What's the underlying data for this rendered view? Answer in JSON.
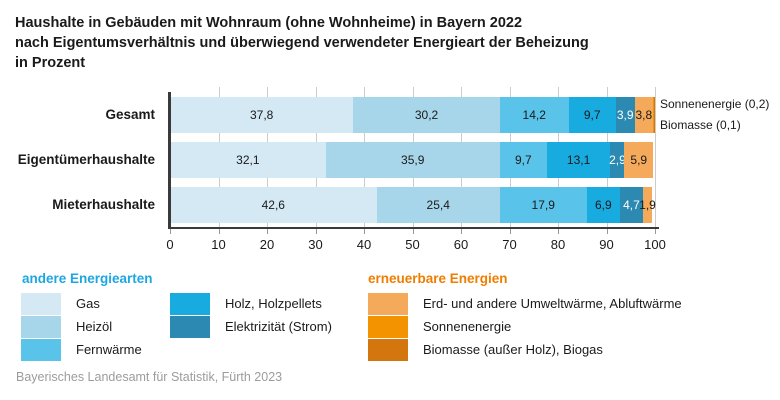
{
  "title": {
    "line1": "Haushalte in Gebäuden mit Wohnraum (ohne Wohnheime) in Bayern 2022",
    "line2": "nach Eigentumsverhältnis und überwiegend verwendeter Energieart der Beheizung",
    "line3": "in Prozent"
  },
  "footer": "Bayerisches Landesamt für Statistik, Fürth 2023",
  "colors": {
    "grid": "#cccccc",
    "axis": "#3a3a3a",
    "tick": "#999999",
    "text": "#1a1a1a",
    "footer_text": "#9c9c9c",
    "blue_heading": "#1da7e2",
    "orange_heading": "#ef7d00"
  },
  "chart_data": {
    "type": "bar",
    "orientation": "horizontal",
    "stacked": true,
    "unit": "Prozent",
    "xlim": [
      0,
      100
    ],
    "xticks": [
      0,
      10,
      20,
      30,
      40,
      50,
      60,
      70,
      80,
      90,
      100
    ],
    "grid": true,
    "categories": [
      "Gesamt",
      "Eigentümerhaushalte",
      "Mieterhaushalte"
    ],
    "series": [
      {
        "name": "Gas",
        "color": "#d4e9f4",
        "label_color": "#1a1a1a",
        "values": [
          37.8,
          32.1,
          42.6
        ],
        "labels": [
          "37,8",
          "32,1",
          "42,6"
        ]
      },
      {
        "name": "Heizöl",
        "color": "#a7d6ea",
        "label_color": "#1a1a1a",
        "values": [
          30.2,
          35.9,
          25.4
        ],
        "labels": [
          "30,2",
          "35,9",
          "25,4"
        ]
      },
      {
        "name": "Fernwärme",
        "color": "#5ac3ea",
        "label_color": "#1a1a1a",
        "values": [
          14.2,
          9.7,
          17.9
        ],
        "labels": [
          "14,2",
          "9,7",
          "17,9"
        ]
      },
      {
        "name": "Holz, Holzpellets",
        "color": "#17abe0",
        "label_color": "#1a1a1a",
        "values": [
          9.7,
          13.1,
          6.9
        ],
        "labels": [
          "9,7",
          "13,1",
          "6,9"
        ]
      },
      {
        "name": "Elektrizität (Strom)",
        "color": "#2c8ab2",
        "label_color": "#ffffff",
        "values": [
          3.9,
          2.9,
          4.7
        ],
        "labels": [
          "3,9",
          "2,9",
          "4,7"
        ]
      },
      {
        "name": "Erd- und andere Umweltwärme, Abluftwärme",
        "color": "#f5aa5b",
        "label_color": "#1a1a1a",
        "values": [
          3.8,
          5.9,
          1.9
        ],
        "labels": [
          "3,8",
          "5,9",
          "1,9"
        ]
      },
      {
        "name": "Sonnenenergie",
        "color": "#f39300",
        "label_color": "#1a1a1a",
        "values": [
          0.2,
          null,
          null
        ],
        "labels": [
          null,
          null,
          null
        ]
      },
      {
        "name": "Biomasse (außer Holz), Biogas",
        "color": "#d2760d",
        "label_color": "#1a1a1a",
        "values": [
          0.1,
          null,
          null
        ],
        "labels": [
          null,
          null,
          null
        ]
      }
    ],
    "annotations": [
      "Sonnenenergie (0,2)",
      "Biomasse (0,1)"
    ]
  },
  "legend": {
    "groups": [
      {
        "heading": "andere Energiearten",
        "heading_color": "#1da7e2",
        "columns": [
          [
            {
              "label": "Gas",
              "color": "#d4e9f4"
            },
            {
              "label": "Heizöl",
              "color": "#a7d6ea"
            },
            {
              "label": "Fernwärme",
              "color": "#5ac3ea"
            }
          ],
          [
            {
              "label": "Holz, Holzpellets",
              "color": "#17abe0"
            },
            {
              "label": "Elektrizität (Strom)",
              "color": "#2c8ab2"
            }
          ]
        ]
      },
      {
        "heading": "erneuerbare Energien",
        "heading_color": "#ef7d00",
        "columns": [
          [
            {
              "label": "Erd- und andere Umweltwärme, Abluftwärme",
              "color": "#f5aa5b"
            },
            {
              "label": "Sonnenenergie",
              "color": "#f39300"
            },
            {
              "label": "Biomasse (außer Holz), Biogas",
              "color": "#d2760d"
            }
          ]
        ]
      }
    ]
  }
}
